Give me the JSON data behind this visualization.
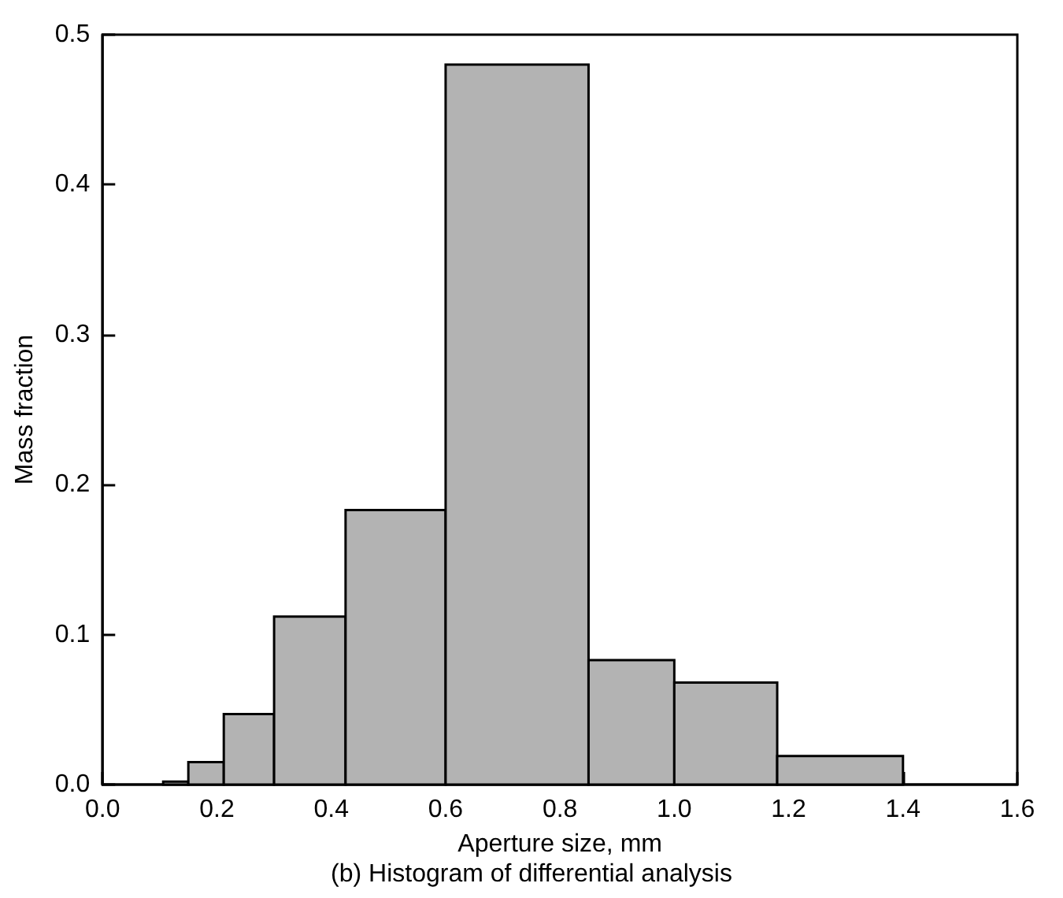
{
  "chart_data": {
    "type": "histogram",
    "xlabel": "Aperture size, mm",
    "ylabel": "Mass fraction",
    "annotations": [
      "(b) Histogram of differential analysis"
    ],
    "bins": [
      0.106,
      0.15,
      0.212,
      0.3,
      0.425,
      0.6,
      0.85,
      1.0,
      1.18,
      1.4
    ],
    "values": [
      0.002,
      0.015,
      0.047,
      0.112,
      0.183,
      0.48,
      0.083,
      0.068,
      0.019
    ],
    "color": "#b3b3b3",
    "xlim": [
      0,
      1.6
    ],
    "xticks": [
      {
        "value": 0,
        "label": "0.0"
      },
      0.2,
      0.4,
      0.6,
      0.8,
      {
        "value": 1,
        "label": "1.0"
      },
      1.2,
      1.4,
      1.6
    ],
    "ylim": [
      0,
      0.5
    ],
    "yticks": [
      {
        "value": 0,
        "label": "0.0"
      },
      0.1,
      0.2,
      0.3,
      0.4,
      0.5
    ],
    "grid": false
  }
}
